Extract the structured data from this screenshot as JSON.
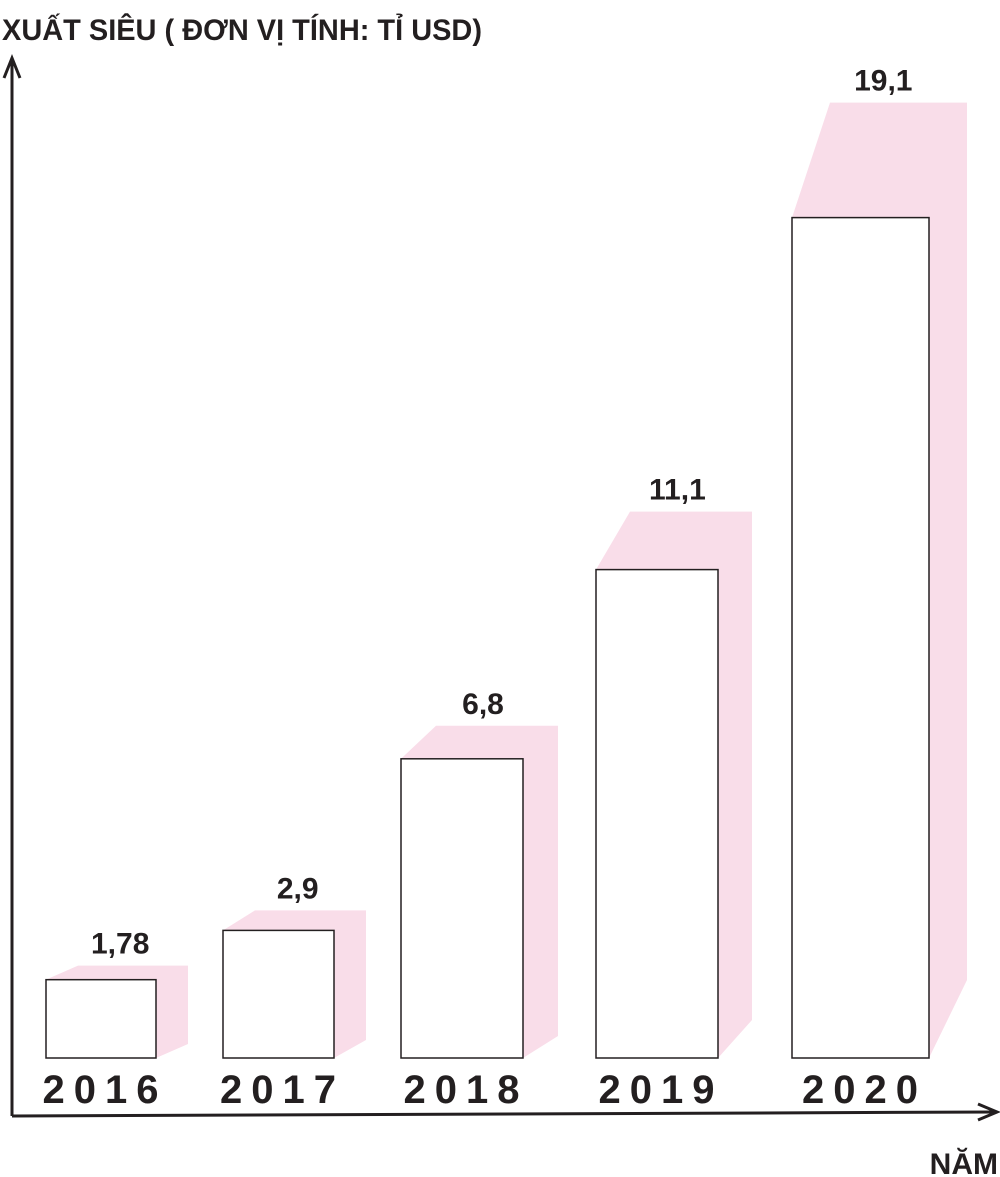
{
  "chart_data": {
    "type": "bar",
    "ylabel": "XUẤT SIÊU ( ĐƠN VỊ TÍNH: TỈ USD)",
    "xlabel": "NĂM",
    "categories": [
      "2016",
      "2017",
      "2018",
      "2019",
      "2020"
    ],
    "value_labels": [
      "1,78",
      "2,9",
      "6,8",
      "11,1",
      "19,1"
    ],
    "values": [
      1.78,
      2.9,
      6.8,
      11.1,
      19.1
    ],
    "colors": {
      "bar_face": "#ffffff",
      "bar_shadow": "#f9dde9",
      "outline": "#231f20"
    }
  }
}
